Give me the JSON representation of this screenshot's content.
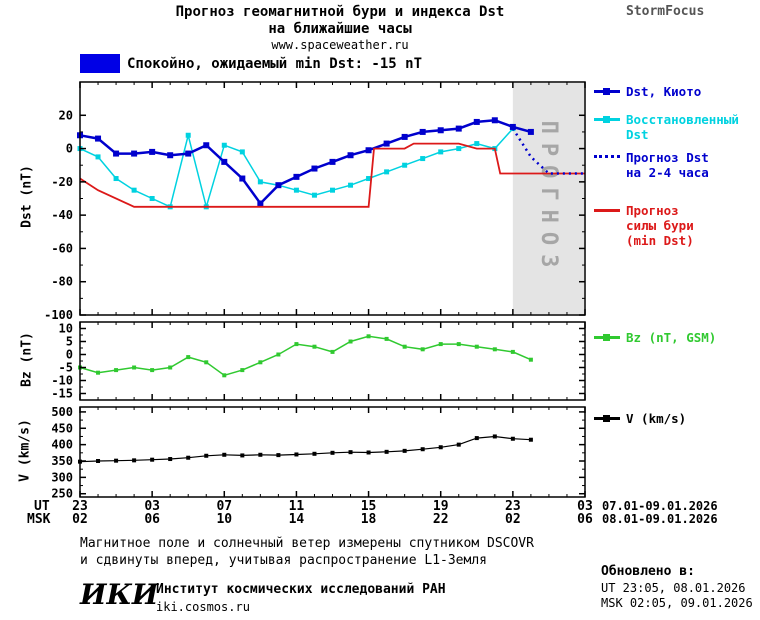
{
  "header": {
    "title_line1": "Прогноз геомагнитной бури и индекса Dst",
    "title_line2": "на ближайшие часы",
    "site": "www.spaceweather.ru",
    "brand": "StormFocus"
  },
  "status": {
    "box_color": "#0000e6",
    "text": "Спокойно, ожидаемый min Dst: -15 nT"
  },
  "chart_data": [
    {
      "id": "dst",
      "type": "line",
      "ylabel": "Dst (nT)",
      "ylim": [
        -100,
        40
      ],
      "yticks": [
        20,
        0,
        -20,
        -40,
        -60,
        -80,
        -100
      ],
      "xlim": [
        0,
        28
      ],
      "xticks": [
        0,
        4,
        8,
        12,
        16,
        20,
        24,
        28
      ],
      "forecast_band": {
        "x0": 24,
        "x1": 28,
        "label": "ПРОГНОЗ",
        "fill": "#e4e4e4",
        "text_color": "#a6a6a6"
      },
      "series": [
        {
          "id": "dst-restored",
          "name": "Восстановленный Dst",
          "color": "#00d2e0",
          "width": 1.5,
          "marker": true,
          "ms": 5,
          "y": [
            0,
            -5,
            -18,
            -25,
            -30,
            -35,
            8,
            -35,
            2,
            -2,
            -20,
            -22,
            -25,
            -28,
            -25,
            -22,
            -18,
            -14,
            -10,
            -6,
            -2,
            0,
            3,
            0,
            12
          ]
        },
        {
          "id": "dst-kyoto",
          "name": "Dst, Киото",
          "color": "#0000cd",
          "width": 2.5,
          "marker": true,
          "ms": 6,
          "y": [
            8,
            6,
            -3,
            -3,
            -2,
            -4,
            -3,
            2,
            -8,
            -18,
            -33,
            -22,
            -17,
            -12,
            -8,
            -4,
            -1,
            3,
            7,
            10,
            11,
            12,
            16,
            17,
            13,
            10
          ]
        },
        {
          "id": "storm-forecast",
          "name": "Прогноз силы бури (min Dst)",
          "color": "#dc1919",
          "width": 1.8,
          "x": [
            0,
            1,
            3,
            16,
            16.3,
            18,
            18.5,
            21,
            22,
            23,
            23.3,
            28
          ],
          "y": [
            -18,
            -25,
            -35,
            -35,
            0,
            0,
            3,
            3,
            0,
            0,
            -15,
            -15
          ]
        },
        {
          "id": "dst-forecast",
          "name": "Прогноз Dst на 2-4 часа",
          "color": "#0000cd",
          "width": 2.5,
          "dash": true,
          "x": [
            24,
            25,
            26,
            28
          ],
          "y": [
            12,
            -5,
            -15,
            -15
          ]
        }
      ]
    },
    {
      "id": "bz",
      "type": "line",
      "ylabel": "Bz (nT)",
      "ylim": [
        -17.5,
        12.5
      ],
      "yticks": [
        10,
        5,
        0,
        -5,
        -10,
        -15
      ],
      "xlim": [
        0,
        28
      ],
      "xticks": [
        0,
        4,
        8,
        12,
        16,
        20,
        24,
        28
      ],
      "series": [
        {
          "id": "bz",
          "name": "Bz (nT, GSM)",
          "color": "#30c930",
          "width": 1.5,
          "marker": true,
          "ms": 4,
          "y": [
            -5,
            -7,
            -6,
            -5,
            -6,
            -5,
            -1,
            -3,
            -8,
            -6,
            -3,
            0,
            4,
            3,
            1,
            5,
            7,
            6,
            3,
            2,
            4,
            4,
            3,
            2,
            1,
            -2
          ]
        }
      ]
    },
    {
      "id": "v",
      "type": "line",
      "ylabel": "V (km/s)",
      "ylim": [
        240,
        515
      ],
      "yticks": [
        500,
        450,
        400,
        350,
        300,
        250
      ],
      "xlim": [
        0,
        28
      ],
      "xticks": [
        0,
        4,
        8,
        12,
        16,
        20,
        24,
        28
      ],
      "series": [
        {
          "id": "v",
          "name": "V (km/s)",
          "color": "#000000",
          "width": 1.2,
          "marker": true,
          "ms": 4,
          "y": [
            348,
            350,
            351,
            352,
            354,
            356,
            360,
            366,
            369,
            367,
            369,
            368,
            370,
            372,
            375,
            377,
            376,
            378,
            381,
            386,
            392,
            400,
            420,
            425,
            418,
            415
          ]
        }
      ]
    }
  ],
  "legend": {
    "kyoto": "Dst, Киото",
    "restored": "Восстановленный\nDst",
    "forecast_dst": "Прогноз Dst\nна 2-4 часа",
    "storm": "Прогноз\nсилы бури\n(min Dst)",
    "bz": "Bz (nT, GSM)",
    "v": "V (km/s)"
  },
  "xaxis": {
    "ut_label": "UT",
    "msk_label": "MSK",
    "ut_ticks": [
      "23",
      "03",
      "07",
      "11",
      "15",
      "19",
      "23",
      "03"
    ],
    "msk_ticks": [
      "02",
      "06",
      "10",
      "14",
      "18",
      "22",
      "02",
      "06"
    ],
    "ut_range": "07.01-09.01.2026",
    "msk_range": "08.01-09.01.2026"
  },
  "footer": {
    "note_line1": "Магнитное поле и солнечный ветер измерены спутником DSCOVR",
    "note_line2": "и сдвинуты вперед, учитывая распространение L1-Земля",
    "updated_label": "Обновлено в:",
    "updated_ut": "UT  23:05, 08.01.2026",
    "updated_msk": "MSK 02:05, 09.01.2026",
    "logo_text": "ИКИ",
    "institute": "Институт космических исследований РАН",
    "institute_site": "iki.cosmos.ru"
  }
}
